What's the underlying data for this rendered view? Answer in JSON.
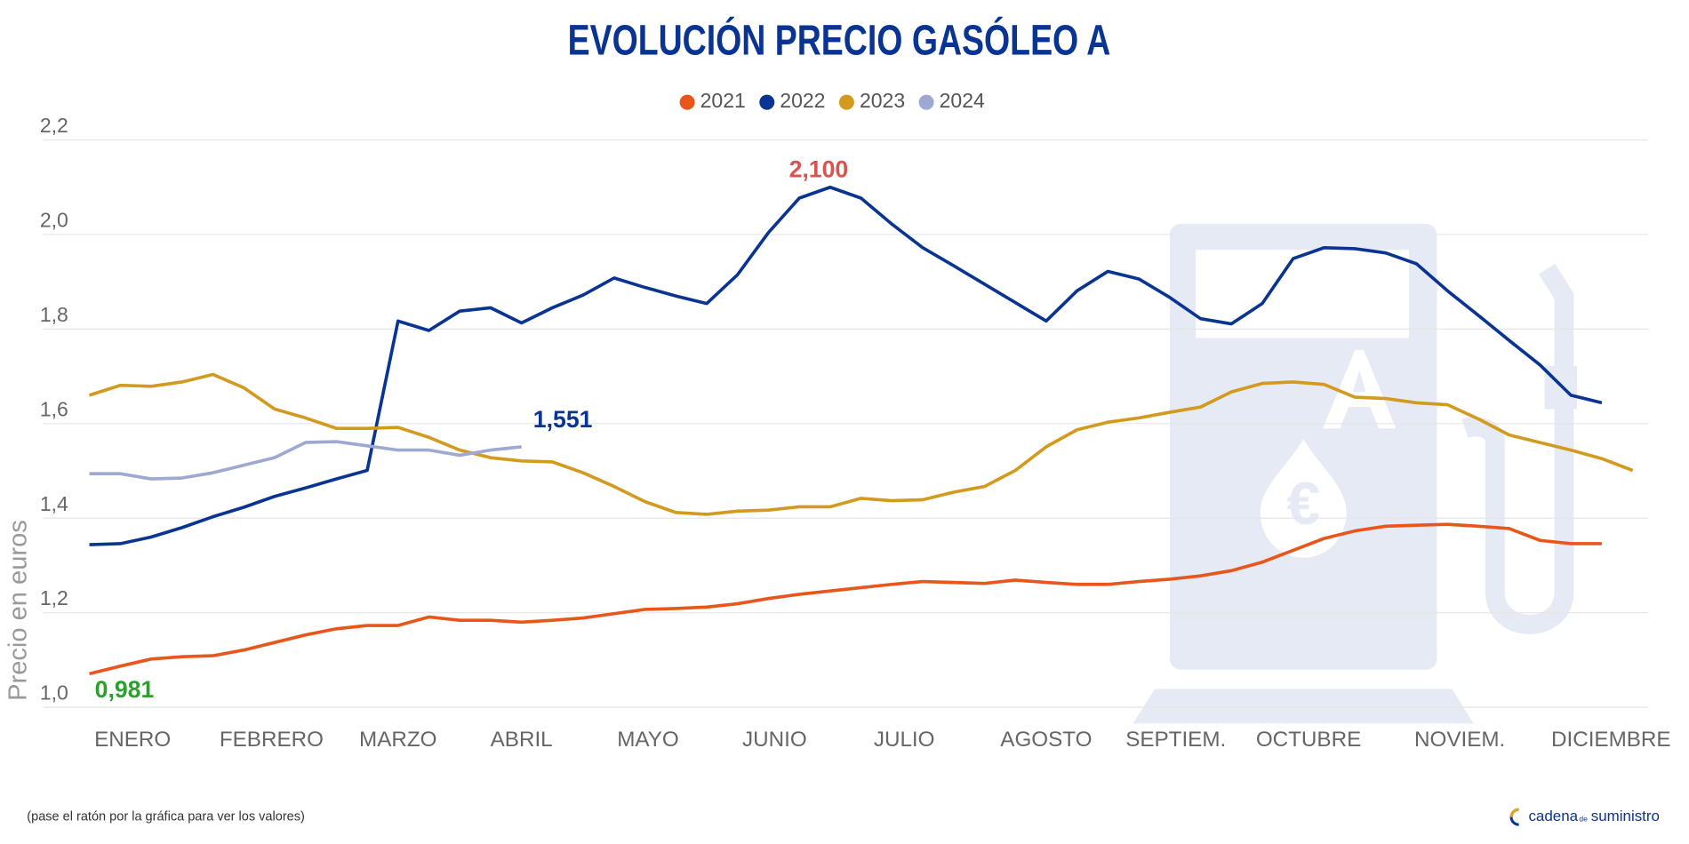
{
  "chart_data": {
    "type": "line",
    "title": "EVOLUCIÓN PRECIO GASÓLEO A",
    "y_label": "Precio en euros",
    "x": [
      1,
      2,
      3,
      4,
      5,
      6,
      7,
      8,
      9,
      10,
      11,
      12,
      13,
      14,
      15,
      16,
      17,
      18,
      19,
      20,
      21,
      22,
      23,
      24,
      25,
      26,
      27,
      28,
      29,
      30,
      31,
      32,
      33,
      34,
      35,
      36,
      37,
      38,
      39,
      40,
      41,
      42,
      43,
      44,
      45,
      46,
      47,
      48,
      49,
      50,
      51
    ],
    "xlim": [
      -0.5,
      51.5
    ],
    "xticks": [
      {
        "value": 2.4,
        "label": "ENERO"
      },
      {
        "value": 6.9,
        "label": "FEBRERO"
      },
      {
        "value": 11.0,
        "label": "MARZO"
      },
      {
        "value": 15.0,
        "label": "ABRIL"
      },
      {
        "value": 19.1,
        "label": "MAYO"
      },
      {
        "value": 23.2,
        "label": "JUNIO"
      },
      {
        "value": 27.4,
        "label": "JULIO"
      },
      {
        "value": 32.0,
        "label": "AGOSTO"
      },
      {
        "value": 36.2,
        "label": "SEPTIEM."
      },
      {
        "value": 40.5,
        "label": "OCTUBRE"
      },
      {
        "value": 45.4,
        "label": "NOVIEM."
      },
      {
        "value": 50.3,
        "label": "DICIEMBRE"
      }
    ],
    "ylim": [
      1.0,
      2.2
    ],
    "yticks": [
      {
        "value": 1.0,
        "label": "1,0"
      },
      {
        "value": 1.2,
        "label": "1,2"
      },
      {
        "value": 1.4,
        "label": "1,4"
      },
      {
        "value": 1.6,
        "label": "1,6"
      },
      {
        "value": 1.8,
        "label": "1,8"
      },
      {
        "value": 2.0,
        "label": "2,0"
      },
      {
        "value": 2.2,
        "label": "2,2"
      }
    ],
    "grid": true,
    "legend": "top",
    "series": [
      {
        "name": "2021",
        "color": "#e8561b",
        "values": [
          1.071,
          1.087,
          1.102,
          1.107,
          1.109,
          1.121,
          1.137,
          1.153,
          1.166,
          1.173,
          1.173,
          1.191,
          1.184,
          1.184,
          1.18,
          1.184,
          1.189,
          1.198,
          1.207,
          1.209,
          1.212,
          1.219,
          1.23,
          1.239,
          1.246,
          1.253,
          1.26,
          1.266,
          1.264,
          1.262,
          1.269,
          1.264,
          1.26,
          1.26,
          1.266,
          1.271,
          1.278,
          1.289,
          1.307,
          1.332,
          1.357,
          1.373,
          1.383,
          1.385,
          1.387,
          1.383,
          1.378,
          1.353,
          1.346,
          1.346,
          null
        ]
      },
      {
        "name": "2022",
        "color": "#0a3491",
        "values": [
          1.344,
          1.346,
          1.36,
          1.38,
          1.403,
          1.423,
          1.446,
          1.464,
          1.483,
          1.501,
          1.817,
          1.797,
          1.838,
          1.845,
          1.813,
          1.845,
          1.872,
          1.908,
          1.888,
          1.87,
          1.854,
          1.915,
          2.004,
          2.077,
          2.1,
          2.077,
          2.022,
          1.972,
          1.934,
          1.895,
          1.856,
          1.817,
          1.881,
          1.922,
          1.906,
          1.867,
          1.822,
          1.811,
          1.854,
          1.949,
          1.972,
          1.97,
          1.961,
          1.938,
          1.881,
          1.829,
          1.776,
          1.724,
          1.66,
          1.644,
          null
        ]
      },
      {
        "name": "2023",
        "color": "#d29a1f",
        "values": [
          1.66,
          1.681,
          1.679,
          1.688,
          1.704,
          1.676,
          1.631,
          1.612,
          1.59,
          1.59,
          1.592,
          1.571,
          1.544,
          1.528,
          1.521,
          1.519,
          1.496,
          1.467,
          1.435,
          1.412,
          1.408,
          1.415,
          1.417,
          1.424,
          1.424,
          1.442,
          1.437,
          1.439,
          1.455,
          1.467,
          1.501,
          1.551,
          1.587,
          1.603,
          1.612,
          1.624,
          1.635,
          1.667,
          1.685,
          1.688,
          1.683,
          1.656,
          1.653,
          1.644,
          1.64,
          1.61,
          1.576,
          1.56,
          1.544,
          1.526,
          1.501
        ]
      },
      {
        "name": "2024",
        "color": "#9fa8d0",
        "values": [
          1.494,
          1.494,
          1.483,
          1.485,
          1.496,
          1.512,
          1.528,
          1.56,
          1.562,
          1.553,
          1.544,
          1.544,
          1.533,
          1.544,
          1.551,
          null,
          null,
          null,
          null,
          null,
          null,
          null,
          null,
          null,
          null,
          null,
          null,
          null,
          null,
          null,
          null,
          null,
          null,
          null,
          null,
          null,
          null,
          null,
          null,
          null,
          null,
          null,
          null,
          null,
          null,
          null,
          null,
          null,
          null,
          null,
          null
        ]
      }
    ],
    "annotations": [
      {
        "text": "2,100",
        "color": "#d9534f"
      },
      {
        "text": "1,551",
        "color": "#0a3491"
      },
      {
        "text": "0,981",
        "color": "#2ca02c"
      }
    ],
    "note": "(pase el ratón por la gráfica para ver los valores)",
    "brand": [
      "cadena",
      "de",
      "suministro"
    ]
  }
}
